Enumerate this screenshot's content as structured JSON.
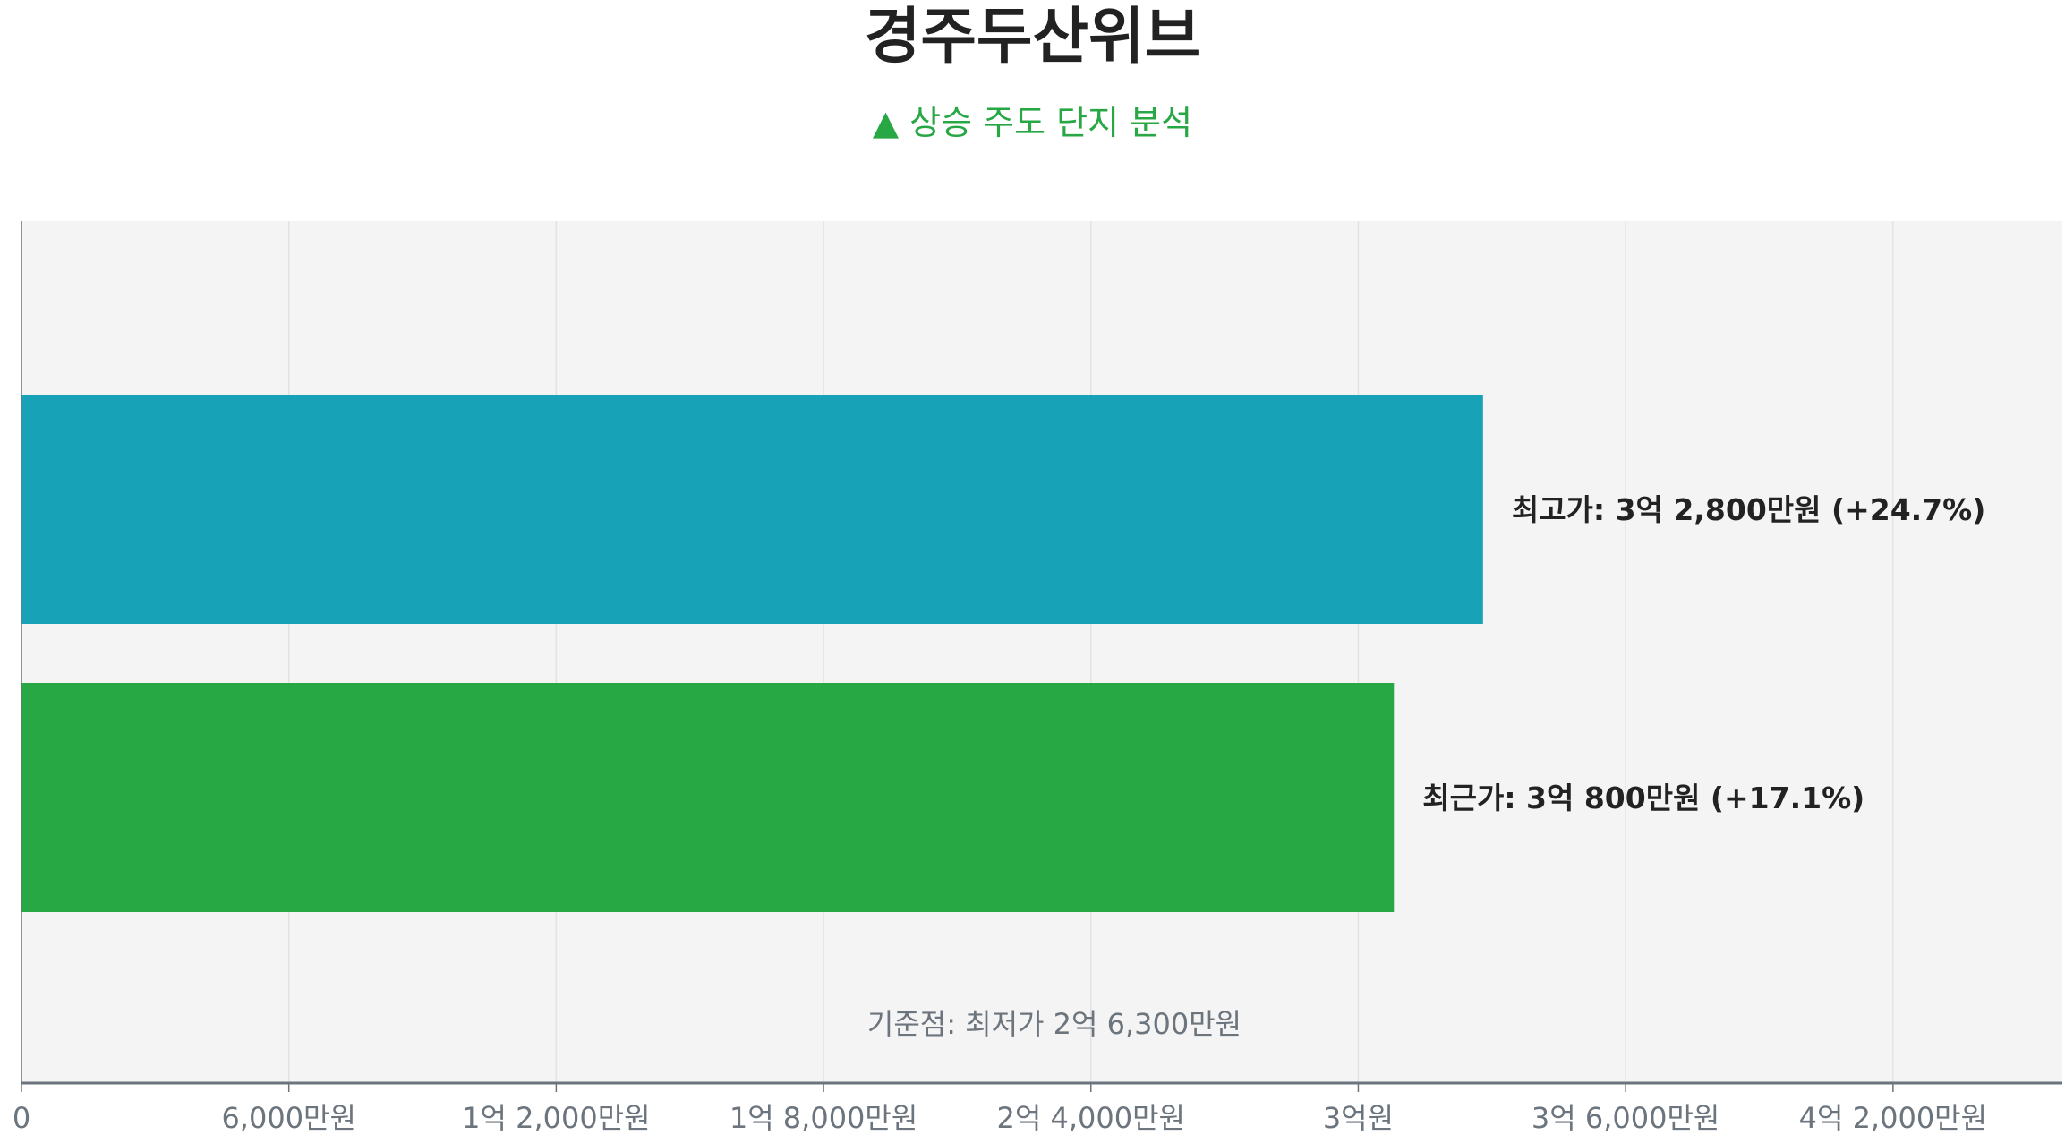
{
  "chart_data": {
    "type": "bar",
    "orientation": "horizontal",
    "title": "경주두산위브",
    "subtitle": "▲ 상승 주도 단지 분석",
    "categories": [
      "최고가",
      "최근가"
    ],
    "values": [
      32800,
      30800
    ],
    "value_unit": "만원",
    "data_labels": [
      "최고가: 3억 2,800만원 (+24.7%)",
      "최근가: 3억 800만원 (+17.1%)"
    ],
    "colors": [
      "#17a2b8",
      "#28a745"
    ],
    "baseline_annotation": "기준점: 최저가 2억 6,300만원",
    "xlim": [
      0,
      45800
    ],
    "x_ticks": [
      0,
      6000,
      12000,
      18000,
      24000,
      30000,
      36000,
      42000
    ],
    "x_tick_labels": [
      "0",
      "6,000만원",
      "1억 2,000만원",
      "1억 8,000만원",
      "2억 4,000만원",
      "3억원",
      "3억 6,000만원",
      "4억 2,000만원"
    ],
    "grid": true,
    "plot_background": "#f4f4f4"
  }
}
